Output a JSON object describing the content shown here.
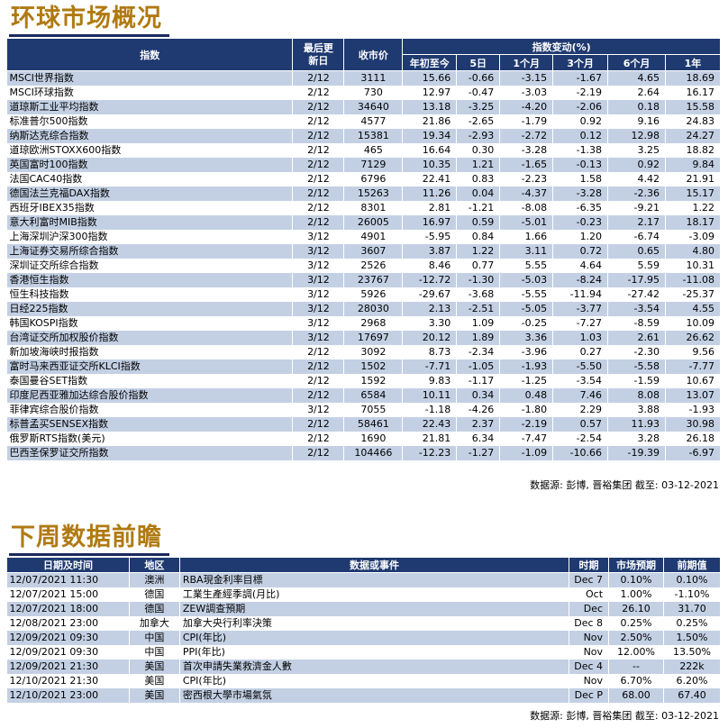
{
  "section1": {
    "title": "环球市场概况",
    "headers": {
      "index": "指数",
      "last_update": "最后更新日",
      "close": "收市价",
      "change_group": "指数变动(%)",
      "ytd": "年初至今",
      "d5": "5日",
      "m1": "1个月",
      "m3": "3个月",
      "m6": "6个月",
      "y1": "1年"
    },
    "rows": [
      {
        "name": "MSCI世界指数",
        "date": "2/12",
        "close": "3111",
        "ytd": "15.66",
        "d5": "-0.66",
        "m1": "-3.15",
        "m3": "-1.67",
        "m6": "4.65",
        "y1": "18.69"
      },
      {
        "name": "MSCI环球指数",
        "date": "2/12",
        "close": "730",
        "ytd": "12.97",
        "d5": "-0.47",
        "m1": "-3.03",
        "m3": "-2.19",
        "m6": "2.64",
        "y1": "16.17"
      },
      {
        "name": "道琼斯工业平均指数",
        "date": "2/12",
        "close": "34640",
        "ytd": "13.18",
        "d5": "-3.25",
        "m1": "-4.20",
        "m3": "-2.06",
        "m6": "0.18",
        "y1": "15.58"
      },
      {
        "name": "标准普尔500指数",
        "date": "2/12",
        "close": "4577",
        "ytd": "21.86",
        "d5": "-2.65",
        "m1": "-1.79",
        "m3": "0.92",
        "m6": "9.16",
        "y1": "24.83"
      },
      {
        "name": "纳斯达克综合指数",
        "date": "2/12",
        "close": "15381",
        "ytd": "19.34",
        "d5": "-2.93",
        "m1": "-2.72",
        "m3": "0.12",
        "m6": "12.98",
        "y1": "24.27"
      },
      {
        "name": "道琼欧洲STOXX600指数",
        "date": "2/12",
        "close": "465",
        "ytd": "16.64",
        "d5": "0.30",
        "m1": "-3.28",
        "m3": "-1.38",
        "m6": "3.25",
        "y1": "18.82"
      },
      {
        "name": "英国富时100指数",
        "date": "2/12",
        "close": "7129",
        "ytd": "10.35",
        "d5": "1.21",
        "m1": "-1.65",
        "m3": "-0.13",
        "m6": "0.92",
        "y1": "9.84"
      },
      {
        "name": "法国CAC40指数",
        "date": "2/12",
        "close": "6796",
        "ytd": "22.41",
        "d5": "0.83",
        "m1": "-2.23",
        "m3": "1.58",
        "m6": "4.42",
        "y1": "21.91"
      },
      {
        "name": "德国法兰克福DAX指数",
        "date": "2/12",
        "close": "15263",
        "ytd": "11.26",
        "d5": "0.04",
        "m1": "-4.37",
        "m3": "-3.28",
        "m6": "-2.36",
        "y1": "15.17"
      },
      {
        "name": "西班牙IBEX35指数",
        "date": "2/12",
        "close": "8301",
        "ytd": "2.81",
        "d5": "-1.21",
        "m1": "-8.08",
        "m3": "-6.35",
        "m6": "-9.21",
        "y1": "1.22"
      },
      {
        "name": "意大利富时MIB指数",
        "date": "2/12",
        "close": "26005",
        "ytd": "16.97",
        "d5": "0.59",
        "m1": "-5.01",
        "m3": "-0.23",
        "m6": "2.17",
        "y1": "18.17"
      },
      {
        "name": "上海深圳沪深300指数",
        "date": "3/12",
        "close": "4901",
        "ytd": "-5.95",
        "d5": "0.84",
        "m1": "1.66",
        "m3": "1.20",
        "m6": "-6.74",
        "y1": "-3.09"
      },
      {
        "name": "上海证券交易所综合指数",
        "date": "3/12",
        "close": "3607",
        "ytd": "3.87",
        "d5": "1.22",
        "m1": "3.11",
        "m3": "0.72",
        "m6": "0.65",
        "y1": "4.80"
      },
      {
        "name": "深圳证交所综合指数",
        "date": "3/12",
        "close": "2526",
        "ytd": "8.46",
        "d5": "0.77",
        "m1": "5.55",
        "m3": "4.64",
        "m6": "5.59",
        "y1": "10.31"
      },
      {
        "name": "香港恒生指数",
        "date": "3/12",
        "close": "23767",
        "ytd": "-12.72",
        "d5": "-1.30",
        "m1": "-5.03",
        "m3": "-8.24",
        "m6": "-17.95",
        "y1": "-11.08"
      },
      {
        "name": "恒生科技指数",
        "date": "3/12",
        "close": "5926",
        "ytd": "-29.67",
        "d5": "-3.68",
        "m1": "-5.55",
        "m3": "-11.94",
        "m6": "-27.42",
        "y1": "-25.37"
      },
      {
        "name": "日经225指数",
        "date": "3/12",
        "close": "28030",
        "ytd": "2.13",
        "d5": "-2.51",
        "m1": "-5.05",
        "m3": "-3.77",
        "m6": "-3.54",
        "y1": "4.55"
      },
      {
        "name": "韩国KOSPI指数",
        "date": "3/12",
        "close": "2968",
        "ytd": "3.30",
        "d5": "1.09",
        "m1": "-0.25",
        "m3": "-7.27",
        "m6": "-8.59",
        "y1": "10.09"
      },
      {
        "name": "台湾证交所加权股价指数",
        "date": "3/12",
        "close": "17697",
        "ytd": "20.12",
        "d5": "1.89",
        "m1": "3.36",
        "m3": "1.03",
        "m6": "2.61",
        "y1": "26.62"
      },
      {
        "name": "新加坡海峡时报指数",
        "date": "2/12",
        "close": "3092",
        "ytd": "8.73",
        "d5": "-2.34",
        "m1": "-3.96",
        "m3": "0.27",
        "m6": "-2.30",
        "y1": "9.56"
      },
      {
        "name": "富时马来西亚证交所KLCI指数",
        "date": "2/12",
        "close": "1502",
        "ytd": "-7.71",
        "d5": "-1.05",
        "m1": "-1.93",
        "m3": "-5.50",
        "m6": "-5.58",
        "y1": "-7.77"
      },
      {
        "name": "泰国曼谷SET指数",
        "date": "2/12",
        "close": "1592",
        "ytd": "9.83",
        "d5": "-1.17",
        "m1": "-1.25",
        "m3": "-3.54",
        "m6": "-1.59",
        "y1": "10.67"
      },
      {
        "name": "印度尼西亚雅加达综合股价指数",
        "date": "2/12",
        "close": "6584",
        "ytd": "10.11",
        "d5": "0.34",
        "m1": "0.48",
        "m3": "7.46",
        "m6": "8.08",
        "y1": "13.07"
      },
      {
        "name": "菲律宾综合股价指数",
        "date": "3/12",
        "close": "7055",
        "ytd": "-1.18",
        "d5": "-4.26",
        "m1": "-1.80",
        "m3": "2.29",
        "m6": "3.88",
        "y1": "-1.93"
      },
      {
        "name": "标普孟买SENSEX指数",
        "date": "2/12",
        "close": "58461",
        "ytd": "22.43",
        "d5": "2.37",
        "m1": "-2.19",
        "m3": "0.57",
        "m6": "11.93",
        "y1": "30.98"
      },
      {
        "name": "俄罗斯RTS指数(美元)",
        "date": "2/12",
        "close": "1690",
        "ytd": "21.81",
        "d5": "6.34",
        "m1": "-7.47",
        "m3": "-2.54",
        "m6": "3.28",
        "y1": "26.18"
      },
      {
        "name": "巴西圣保罗证交所指数",
        "date": "2/12",
        "close": "104466",
        "ytd": "-12.23",
        "d5": "-1.27",
        "m1": "-1.09",
        "m3": "-10.66",
        "m6": "-19.39",
        "y1": "-6.97"
      }
    ],
    "source": "数据源: 彭博, 晋裕集团 截至: 03-12-2021"
  },
  "section2": {
    "title": "下周数据前瞻",
    "headers": {
      "datetime": "日期及时间",
      "region": "地区",
      "event": "数据或事件",
      "period": "时期",
      "expected": "市场预期",
      "previous": "前期值"
    },
    "rows": [
      {
        "datetime": "12/07/2021 11:30",
        "region": "澳洲",
        "event": "RBA現金利率目標",
        "period": "Dec 7",
        "expected": "0.10%",
        "previous": "0.10%"
      },
      {
        "datetime": "12/07/2021 15:00",
        "region": "德国",
        "event": "工業生產經季調(月比)",
        "period": "Oct",
        "expected": "1.00%",
        "previous": "-1.10%"
      },
      {
        "datetime": "12/07/2021 18:00",
        "region": "德国",
        "event": "ZEW調查預期",
        "period": "Dec",
        "expected": "26.10",
        "previous": "31.70"
      },
      {
        "datetime": "12/08/2021 23:00",
        "region": "加拿大",
        "event": "加拿大央行利率決策",
        "period": "Dec 8",
        "expected": "0.25%",
        "previous": "0.25%"
      },
      {
        "datetime": "12/09/2021 09:30",
        "region": "中国",
        "event": "CPI(年比)",
        "period": "Nov",
        "expected": "2.50%",
        "previous": "1.50%"
      },
      {
        "datetime": "12/09/2021 09:30",
        "region": "中国",
        "event": "PPI(年比)",
        "period": "Nov",
        "expected": "12.00%",
        "previous": "13.50%"
      },
      {
        "datetime": "12/09/2021 21:30",
        "region": "美国",
        "event": "首次申請失業救濟金人數",
        "period": "Dec 4",
        "expected": "--",
        "previous": "222k"
      },
      {
        "datetime": "12/10/2021 21:30",
        "region": "美国",
        "event": "CPI(年比)",
        "period": "Nov",
        "expected": "6.70%",
        "previous": "6.20%"
      },
      {
        "datetime": "12/10/2021 23:00",
        "region": "美国",
        "event": "密西根大學市場氣氛",
        "period": "Dec P",
        "expected": "68.00",
        "previous": "67.40"
      }
    ],
    "source": "数据源: 彭博, 晋裕集团 截至: 03-12-2021"
  }
}
